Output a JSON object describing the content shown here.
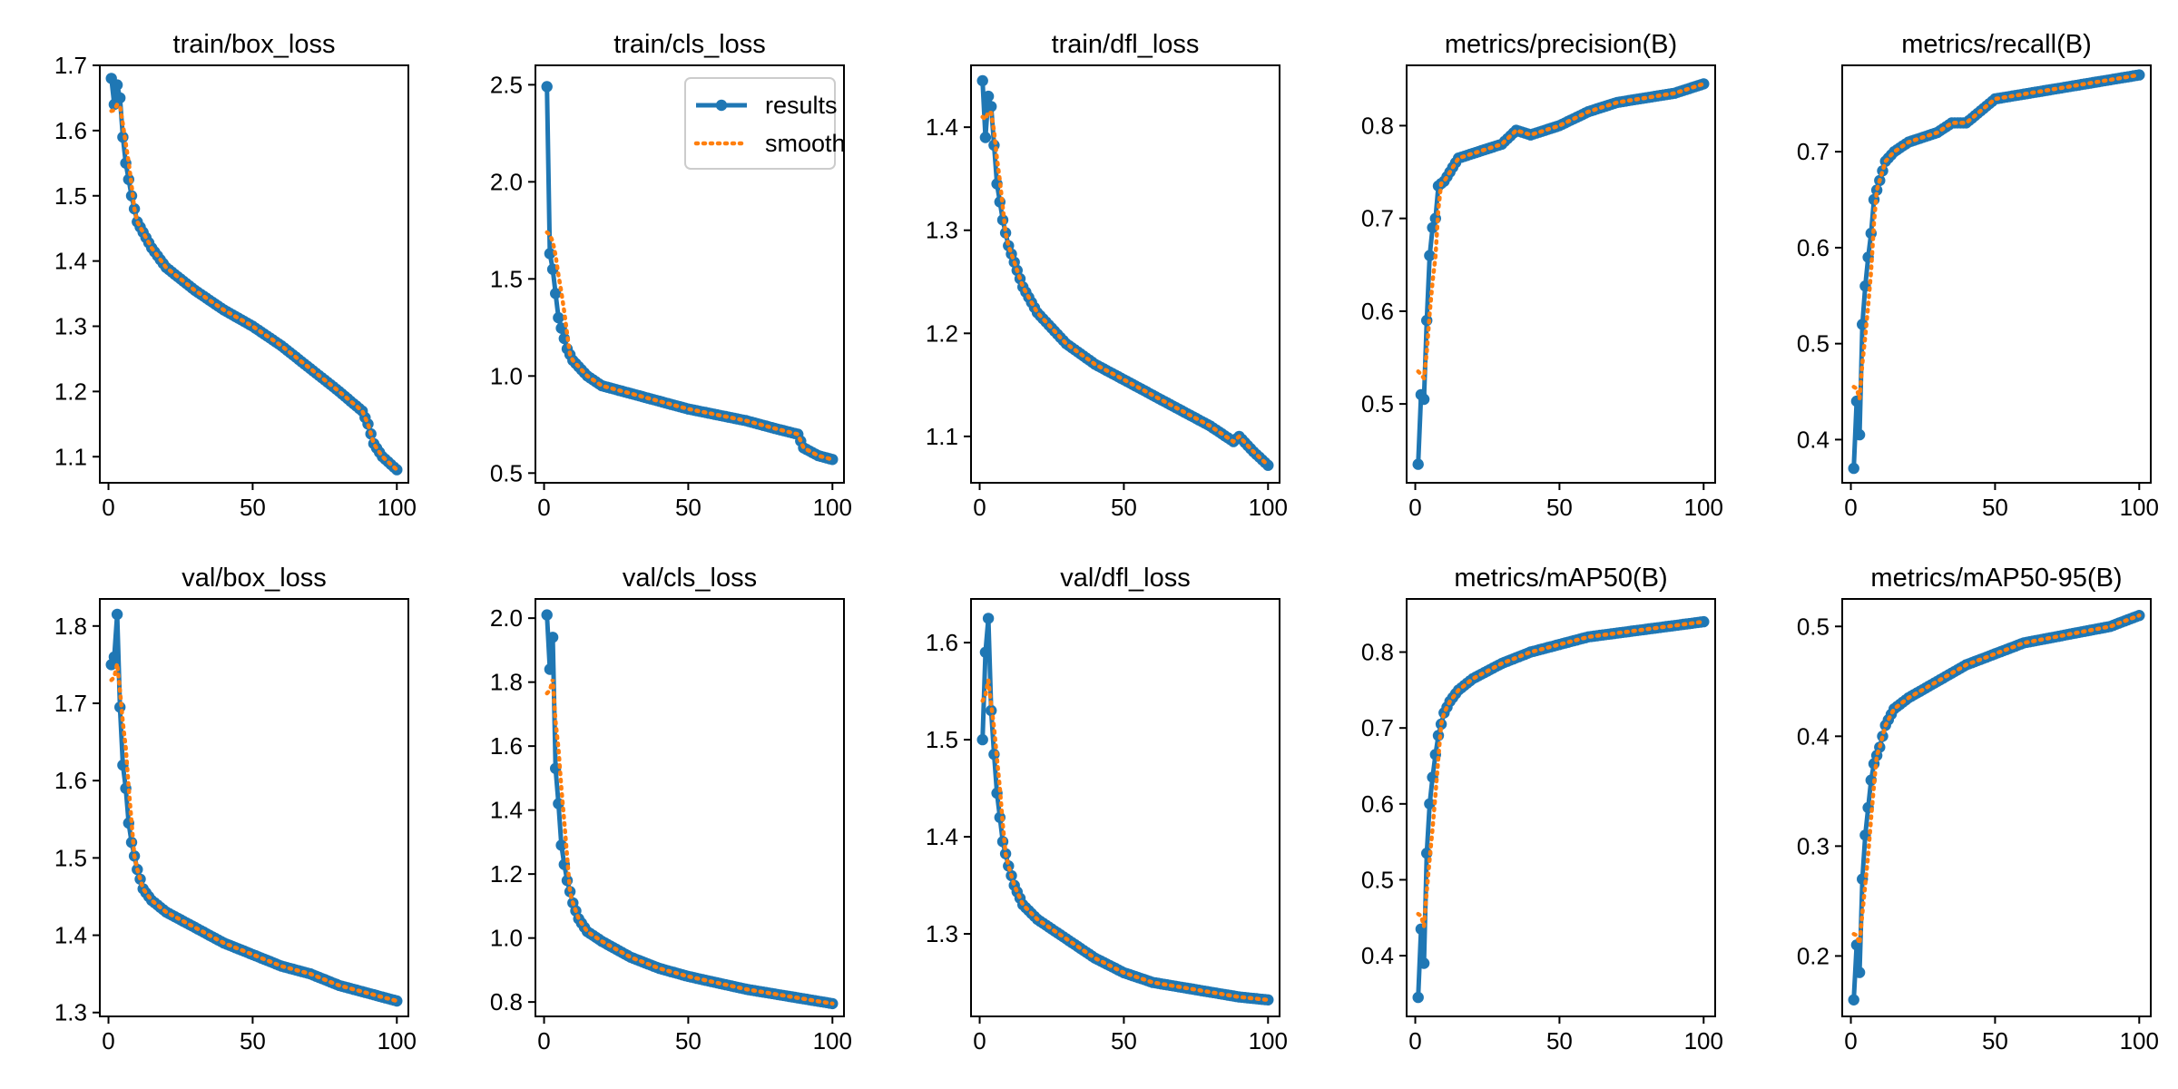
{
  "colors": {
    "results": "#1f77b4",
    "smooth": "#ff7f0e"
  },
  "legend": {
    "results_label": "results",
    "smooth_label": "smooth",
    "placement": "upper right of train/cls_loss"
  },
  "chart_data": [
    {
      "type": "line",
      "title": "train/box_loss",
      "xlim": [
        -3,
        104
      ],
      "ylim": [
        1.06,
        1.7
      ],
      "xticks": [
        0,
        50,
        100
      ],
      "yticks": [
        1.1,
        1.2,
        1.3,
        1.4,
        1.5,
        1.6,
        1.7
      ],
      "ytick_labels": [
        "1.1",
        "1.2",
        "1.3",
        "1.4",
        "1.5",
        "1.6",
        "1.7"
      ],
      "x_start": 1,
      "x_end": 100,
      "anchors": [
        [
          1,
          1.68
        ],
        [
          2,
          1.64
        ],
        [
          3,
          1.67
        ],
        [
          4,
          1.65
        ],
        [
          5,
          1.59
        ],
        [
          6,
          1.55
        ],
        [
          8,
          1.5
        ],
        [
          10,
          1.46
        ],
        [
          15,
          1.42
        ],
        [
          20,
          1.39
        ],
        [
          30,
          1.355
        ],
        [
          40,
          1.325
        ],
        [
          50,
          1.3
        ],
        [
          60,
          1.27
        ],
        [
          70,
          1.235
        ],
        [
          80,
          1.2
        ],
        [
          88,
          1.17
        ],
        [
          90,
          1.15
        ],
        [
          92,
          1.12
        ],
        [
          95,
          1.1
        ],
        [
          100,
          1.08
        ]
      ],
      "smooth_start": [
        1,
        1.63
      ]
    },
    {
      "type": "line",
      "title": "train/cls_loss",
      "xlim": [
        -3,
        104
      ],
      "ylim": [
        0.45,
        2.6
      ],
      "xticks": [
        0,
        50,
        100
      ],
      "yticks": [
        0.5,
        1.0,
        1.5,
        2.0,
        2.5
      ],
      "ytick_labels": [
        "0.5",
        "1.0",
        "1.5",
        "2.0",
        "2.5"
      ],
      "x_start": 1,
      "x_end": 100,
      "anchors": [
        [
          1,
          2.49
        ],
        [
          2,
          1.63
        ],
        [
          3,
          1.55
        ],
        [
          5,
          1.3
        ],
        [
          8,
          1.14
        ],
        [
          10,
          1.08
        ],
        [
          15,
          1.0
        ],
        [
          20,
          0.95
        ],
        [
          30,
          0.91
        ],
        [
          40,
          0.87
        ],
        [
          50,
          0.83
        ],
        [
          60,
          0.8
        ],
        [
          70,
          0.77
        ],
        [
          80,
          0.73
        ],
        [
          88,
          0.7
        ],
        [
          90,
          0.63
        ],
        [
          95,
          0.59
        ],
        [
          100,
          0.57
        ]
      ],
      "smooth_start": [
        1,
        1.74
      ]
    },
    {
      "type": "line",
      "title": "train/dfl_loss",
      "xlim": [
        -3,
        104
      ],
      "ylim": [
        1.055,
        1.46
      ],
      "xticks": [
        0,
        50,
        100
      ],
      "yticks": [
        1.1,
        1.2,
        1.3,
        1.4
      ],
      "ytick_labels": [
        "1.1",
        "1.2",
        "1.3",
        "1.4"
      ],
      "x_start": 1,
      "x_end": 100,
      "anchors": [
        [
          1,
          1.445
        ],
        [
          2,
          1.39
        ],
        [
          3,
          1.43
        ],
        [
          4,
          1.42
        ],
        [
          6,
          1.345
        ],
        [
          8,
          1.31
        ],
        [
          10,
          1.285
        ],
        [
          15,
          1.245
        ],
        [
          20,
          1.22
        ],
        [
          30,
          1.19
        ],
        [
          40,
          1.17
        ],
        [
          50,
          1.155
        ],
        [
          60,
          1.14
        ],
        [
          70,
          1.125
        ],
        [
          80,
          1.11
        ],
        [
          88,
          1.095
        ],
        [
          90,
          1.1
        ],
        [
          95,
          1.085
        ],
        [
          100,
          1.072
        ]
      ],
      "smooth_start": [
        1,
        1.41
      ]
    },
    {
      "type": "line",
      "title": "metrics/precision(B)",
      "xlim": [
        -3,
        104
      ],
      "ylim": [
        0.415,
        0.865
      ],
      "xticks": [
        0,
        50,
        100
      ],
      "yticks": [
        0.5,
        0.6,
        0.7,
        0.8
      ],
      "ytick_labels": [
        "0.5",
        "0.6",
        "0.7",
        "0.8"
      ],
      "x_start": 1,
      "x_end": 100,
      "anchors": [
        [
          1,
          0.435
        ],
        [
          2,
          0.51
        ],
        [
          3,
          0.505
        ],
        [
          4,
          0.59
        ],
        [
          5,
          0.66
        ],
        [
          6,
          0.69
        ],
        [
          7,
          0.7
        ],
        [
          8,
          0.735
        ],
        [
          10,
          0.74
        ],
        [
          12,
          0.75
        ],
        [
          15,
          0.765
        ],
        [
          20,
          0.77
        ],
        [
          30,
          0.78
        ],
        [
          35,
          0.795
        ],
        [
          40,
          0.79
        ],
        [
          50,
          0.8
        ],
        [
          60,
          0.815
        ],
        [
          70,
          0.825
        ],
        [
          80,
          0.83
        ],
        [
          90,
          0.835
        ],
        [
          100,
          0.845
        ]
      ],
      "smooth_start": [
        1,
        0.535
      ]
    },
    {
      "type": "line",
      "title": "metrics/recall(B)",
      "xlim": [
        -3,
        104
      ],
      "ylim": [
        0.355,
        0.79
      ],
      "xticks": [
        0,
        50,
        100
      ],
      "yticks": [
        0.4,
        0.5,
        0.6,
        0.7
      ],
      "ytick_labels": [
        "0.4",
        "0.5",
        "0.6",
        "0.7"
      ],
      "x_start": 1,
      "x_end": 100,
      "anchors": [
        [
          1,
          0.37
        ],
        [
          2,
          0.44
        ],
        [
          3,
          0.405
        ],
        [
          4,
          0.52
        ],
        [
          5,
          0.56
        ],
        [
          6,
          0.59
        ],
        [
          7,
          0.615
        ],
        [
          8,
          0.65
        ],
        [
          10,
          0.67
        ],
        [
          12,
          0.69
        ],
        [
          15,
          0.7
        ],
        [
          20,
          0.71
        ],
        [
          30,
          0.72
        ],
        [
          35,
          0.73
        ],
        [
          40,
          0.73
        ],
        [
          50,
          0.755
        ],
        [
          60,
          0.76
        ],
        [
          70,
          0.765
        ],
        [
          80,
          0.77
        ],
        [
          90,
          0.775
        ],
        [
          100,
          0.78
        ]
      ],
      "smooth_start": [
        1,
        0.455
      ]
    },
    {
      "type": "line",
      "title": "val/box_loss",
      "xlim": [
        -3,
        104
      ],
      "ylim": [
        1.295,
        1.835
      ],
      "xticks": [
        0,
        50,
        100
      ],
      "yticks": [
        1.3,
        1.4,
        1.5,
        1.6,
        1.7,
        1.8
      ],
      "ytick_labels": [
        "1.3",
        "1.4",
        "1.5",
        "1.6",
        "1.7",
        "1.8"
      ],
      "x_start": 1,
      "x_end": 100,
      "anchors": [
        [
          1,
          1.75
        ],
        [
          2,
          1.76
        ],
        [
          3,
          1.815
        ],
        [
          4,
          1.695
        ],
        [
          5,
          1.62
        ],
        [
          6,
          1.59
        ],
        [
          7,
          1.545
        ],
        [
          8,
          1.52
        ],
        [
          10,
          1.485
        ],
        [
          12,
          1.46
        ],
        [
          15,
          1.445
        ],
        [
          20,
          1.43
        ],
        [
          30,
          1.41
        ],
        [
          40,
          1.39
        ],
        [
          50,
          1.375
        ],
        [
          60,
          1.36
        ],
        [
          70,
          1.35
        ],
        [
          80,
          1.335
        ],
        [
          90,
          1.325
        ],
        [
          100,
          1.315
        ]
      ],
      "smooth_start": [
        1,
        1.73
      ]
    },
    {
      "type": "line",
      "title": "val/cls_loss",
      "xlim": [
        -3,
        104
      ],
      "ylim": [
        0.755,
        2.06
      ],
      "xticks": [
        0,
        50,
        100
      ],
      "yticks": [
        0.8,
        1.0,
        1.2,
        1.4,
        1.6,
        1.8,
        2.0
      ],
      "ytick_labels": [
        "0.8",
        "1.0",
        "1.2",
        "1.4",
        "1.6",
        "1.8",
        "2.0"
      ],
      "x_start": 1,
      "x_end": 100,
      "anchors": [
        [
          1,
          2.01
        ],
        [
          2,
          1.84
        ],
        [
          3,
          1.94
        ],
        [
          4,
          1.53
        ],
        [
          5,
          1.42
        ],
        [
          6,
          1.29
        ],
        [
          7,
          1.23
        ],
        [
          8,
          1.18
        ],
        [
          10,
          1.11
        ],
        [
          12,
          1.06
        ],
        [
          15,
          1.02
        ],
        [
          20,
          0.99
        ],
        [
          30,
          0.94
        ],
        [
          40,
          0.905
        ],
        [
          50,
          0.88
        ],
        [
          60,
          0.86
        ],
        [
          70,
          0.84
        ],
        [
          80,
          0.825
        ],
        [
          90,
          0.81
        ],
        [
          100,
          0.795
        ]
      ],
      "smooth_start": [
        1,
        1.765
      ]
    },
    {
      "type": "line",
      "title": "val/dfl_loss",
      "xlim": [
        -3,
        104
      ],
      "ylim": [
        1.215,
        1.645
      ],
      "xticks": [
        0,
        50,
        100
      ],
      "yticks": [
        1.3,
        1.4,
        1.5,
        1.6
      ],
      "ytick_labels": [
        "1.3",
        "1.4",
        "1.5",
        "1.6"
      ],
      "x_start": 1,
      "x_end": 100,
      "anchors": [
        [
          1,
          1.5
        ],
        [
          2,
          1.59
        ],
        [
          3,
          1.625
        ],
        [
          4,
          1.53
        ],
        [
          5,
          1.485
        ],
        [
          6,
          1.445
        ],
        [
          7,
          1.42
        ],
        [
          8,
          1.395
        ],
        [
          10,
          1.37
        ],
        [
          12,
          1.35
        ],
        [
          15,
          1.33
        ],
        [
          20,
          1.315
        ],
        [
          30,
          1.295
        ],
        [
          40,
          1.275
        ],
        [
          50,
          1.26
        ],
        [
          60,
          1.25
        ],
        [
          70,
          1.245
        ],
        [
          80,
          1.24
        ],
        [
          90,
          1.235
        ],
        [
          100,
          1.232
        ]
      ],
      "smooth_start": [
        1,
        1.54
      ]
    },
    {
      "type": "line",
      "title": "metrics/mAP50(B)",
      "xlim": [
        -3,
        104
      ],
      "ylim": [
        0.32,
        0.87
      ],
      "xticks": [
        0,
        50,
        100
      ],
      "yticks": [
        0.4,
        0.5,
        0.6,
        0.7,
        0.8
      ],
      "ytick_labels": [
        "0.4",
        "0.5",
        "0.6",
        "0.7",
        "0.8"
      ],
      "x_start": 1,
      "x_end": 100,
      "anchors": [
        [
          1,
          0.345
        ],
        [
          2,
          0.435
        ],
        [
          3,
          0.39
        ],
        [
          4,
          0.535
        ],
        [
          5,
          0.6
        ],
        [
          6,
          0.635
        ],
        [
          7,
          0.665
        ],
        [
          8,
          0.69
        ],
        [
          10,
          0.72
        ],
        [
          12,
          0.735
        ],
        [
          15,
          0.75
        ],
        [
          20,
          0.765
        ],
        [
          30,
          0.785
        ],
        [
          40,
          0.8
        ],
        [
          50,
          0.81
        ],
        [
          60,
          0.82
        ],
        [
          70,
          0.825
        ],
        [
          80,
          0.83
        ],
        [
          90,
          0.835
        ],
        [
          100,
          0.84
        ]
      ],
      "smooth_start": [
        1,
        0.455
      ]
    },
    {
      "type": "line",
      "title": "metrics/mAP50-95(B)",
      "xlim": [
        -3,
        104
      ],
      "ylim": [
        0.145,
        0.525
      ],
      "xticks": [
        0,
        50,
        100
      ],
      "yticks": [
        0.2,
        0.3,
        0.4,
        0.5
      ],
      "ytick_labels": [
        "0.2",
        "0.3",
        "0.4",
        "0.5"
      ],
      "x_start": 1,
      "x_end": 100,
      "anchors": [
        [
          1,
          0.16
        ],
        [
          2,
          0.21
        ],
        [
          3,
          0.185
        ],
        [
          4,
          0.27
        ],
        [
          5,
          0.31
        ],
        [
          6,
          0.335
        ],
        [
          7,
          0.36
        ],
        [
          8,
          0.375
        ],
        [
          10,
          0.39
        ],
        [
          12,
          0.41
        ],
        [
          15,
          0.425
        ],
        [
          20,
          0.435
        ],
        [
          30,
          0.45
        ],
        [
          40,
          0.465
        ],
        [
          50,
          0.475
        ],
        [
          60,
          0.485
        ],
        [
          70,
          0.49
        ],
        [
          80,
          0.495
        ],
        [
          90,
          0.5
        ],
        [
          100,
          0.51
        ]
      ],
      "smooth_start": [
        1,
        0.22
      ]
    }
  ]
}
